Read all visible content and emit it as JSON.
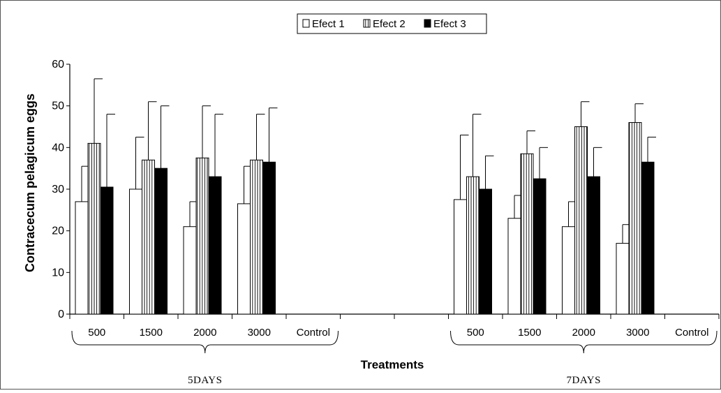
{
  "chart_data": {
    "type": "bar",
    "title": "",
    "xlabel": "Treatments",
    "ylabel": "Contracecum pelagicum eggs",
    "ylim": [
      0,
      60
    ],
    "yticks": [
      "0",
      "10",
      "20",
      "30",
      "40",
      "50",
      "60"
    ],
    "grid": false,
    "legend_position": "top-center",
    "groups": [
      {
        "label": "5DAYS",
        "categories": [
          "500",
          "1500",
          "2000",
          "3000",
          "Control"
        ]
      },
      {
        "label": "7DAYS",
        "categories": [
          "500",
          "1500",
          "2000",
          "3000",
          "Control"
        ]
      }
    ],
    "series": [
      {
        "name": "Efect 1",
        "fill": "white",
        "values": [
          27,
          30,
          21,
          26.5,
          null,
          27.5,
          23,
          21,
          17,
          null
        ],
        "error": [
          8.5,
          12.5,
          6,
          9,
          null,
          15.5,
          5.5,
          6,
          4.5,
          null
        ]
      },
      {
        "name": "Efect 2",
        "fill": "striped",
        "values": [
          41,
          37,
          37.5,
          37,
          null,
          33,
          38.5,
          45,
          46,
          null
        ],
        "error": [
          15.5,
          14,
          12.5,
          11,
          null,
          15,
          5.5,
          6,
          4.5,
          null
        ]
      },
      {
        "name": "Efect 3",
        "fill": "black",
        "values": [
          30.5,
          35,
          33,
          36.5,
          null,
          30,
          32.5,
          33,
          36.5,
          null
        ],
        "error": [
          17.5,
          15,
          15,
          13,
          null,
          8,
          7.5,
          7,
          6,
          null
        ]
      }
    ],
    "colors": {
      "bar_outline": "#000000",
      "solid_fill": "#000000",
      "hollow_fill": "#ffffff",
      "border": "#555555"
    }
  }
}
